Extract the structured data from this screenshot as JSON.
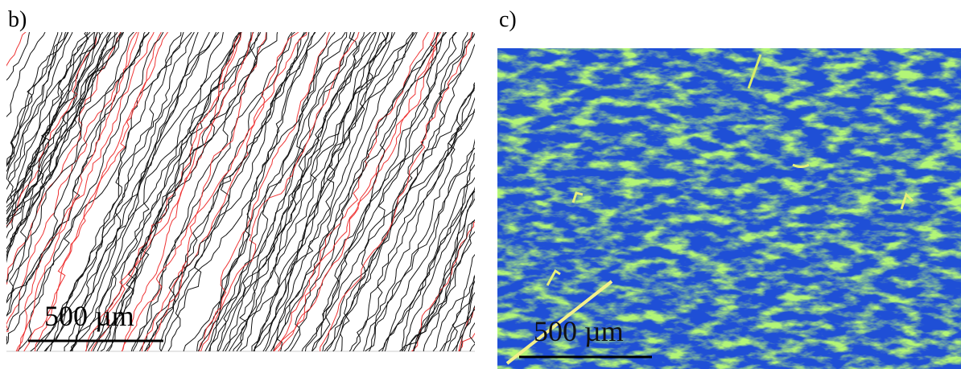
{
  "panels": [
    {
      "label": "b)",
      "scale_bar": "500 µm"
    },
    {
      "label": "c)",
      "scale_bar": "500 µm"
    }
  ]
}
